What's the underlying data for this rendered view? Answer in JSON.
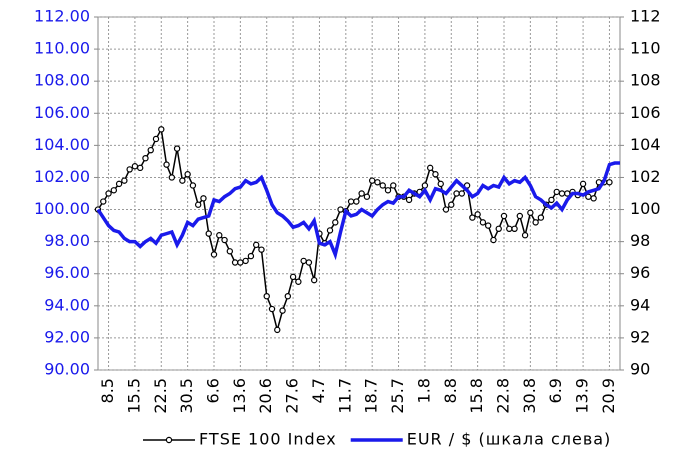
{
  "chart_data": {
    "type": "line",
    "categories": [
      null,
      null,
      "8.5",
      null,
      null,
      null,
      null,
      "15.5",
      null,
      null,
      null,
      null,
      "22.5",
      null,
      null,
      null,
      null,
      "30.5",
      null,
      null,
      null,
      null,
      "6.6",
      null,
      null,
      null,
      null,
      "13.6",
      null,
      null,
      null,
      null,
      "20.6",
      null,
      null,
      null,
      null,
      "27.6",
      null,
      null,
      null,
      null,
      "4.7",
      null,
      null,
      null,
      null,
      "11.7",
      null,
      null,
      null,
      null,
      "18.7",
      null,
      null,
      null,
      null,
      "25.7",
      null,
      null,
      null,
      null,
      "1.8",
      null,
      null,
      null,
      null,
      "8.8",
      null,
      null,
      null,
      null,
      "15.8",
      null,
      null,
      null,
      null,
      "22.8",
      null,
      null,
      null,
      null,
      "30.8",
      null,
      null,
      null,
      null,
      "6.9",
      null,
      null,
      null,
      null,
      "13.9",
      null,
      null,
      null,
      null,
      "20.9",
      null,
      null
    ],
    "series": [
      {
        "name": "FTSE 100 Index",
        "color": "#000000",
        "axis": "y2",
        "marker": "circle",
        "values": [
          100.0,
          100.5,
          101.0,
          101.2,
          101.6,
          101.8,
          102.5,
          102.7,
          102.6,
          103.2,
          103.7,
          104.4,
          105.0,
          102.8,
          102.0,
          103.8,
          101.8,
          102.2,
          101.5,
          100.3,
          100.7,
          98.5,
          97.2,
          98.4,
          98.1,
          97.4,
          96.7,
          96.7,
          96.8,
          97.1,
          97.8,
          97.5,
          94.6,
          93.8,
          92.5,
          93.7,
          94.6,
          95.8,
          95.5,
          96.8,
          96.7,
          95.6,
          98.5,
          97.9,
          98.7,
          99.2,
          100.0,
          99.9,
          100.5,
          100.5,
          101.0,
          100.8,
          101.8,
          101.7,
          101.5,
          101.2,
          101.5,
          100.8,
          100.8,
          100.6,
          101.0,
          101.1,
          101.5,
          102.6,
          102.2,
          101.6,
          100.0,
          100.3,
          101.0,
          101.0,
          101.5,
          99.5,
          99.7,
          99.2,
          99.0,
          98.1,
          98.8,
          99.6,
          98.8,
          98.8,
          99.6,
          98.4,
          99.8,
          99.2,
          99.5,
          100.3,
          100.6,
          101.1,
          101.0,
          101.0,
          101.1,
          100.9,
          101.6,
          100.8,
          100.7,
          101.7,
          101.7,
          101.7,
          null,
          null
        ]
      },
      {
        "name": "EUR / $ (шкала слева)",
        "color": "#1a1aeb",
        "values": [
          100.0,
          99.5,
          99.0,
          98.7,
          98.6,
          98.2,
          98.0,
          98.0,
          97.7,
          98.0,
          98.2,
          97.9,
          98.4,
          98.5,
          98.6,
          97.8,
          98.4,
          99.2,
          99.0,
          99.4,
          99.5,
          99.6,
          100.6,
          100.5,
          100.8,
          101.0,
          101.3,
          101.4,
          101.8,
          101.6,
          101.7,
          102.0,
          101.2,
          100.3,
          99.8,
          99.6,
          99.3,
          98.9,
          99.0,
          99.2,
          98.8,
          99.3,
          97.9,
          97.8,
          98.0,
          97.2,
          98.6,
          99.9,
          99.6,
          99.7,
          100.0,
          99.8,
          99.6,
          100.0,
          100.3,
          100.5,
          100.4,
          100.8,
          100.8,
          101.2,
          101.0,
          100.8,
          101.2,
          100.6,
          101.3,
          101.2,
          101.0,
          101.4,
          101.8,
          101.5,
          101.2,
          100.8,
          101.0,
          101.5,
          101.3,
          101.5,
          101.4,
          102.0,
          101.6,
          101.8,
          101.7,
          102.0,
          101.5,
          100.8,
          100.6,
          100.3,
          100.1,
          100.4,
          100.0,
          100.6,
          101.0,
          101.0,
          100.9,
          101.1,
          101.2,
          101.3,
          101.8,
          102.8,
          102.9,
          102.9
        ]
      }
    ],
    "ylim": [
      90,
      112
    ],
    "yticks": [
      {
        "value": 90,
        "label": "90.00"
      },
      {
        "value": 92,
        "label": "92.00"
      },
      {
        "value": 94,
        "label": "94.00"
      },
      {
        "value": 96,
        "label": "96.00"
      },
      {
        "value": 98,
        "label": "98.00"
      },
      {
        "value": 100,
        "label": "100.00"
      },
      {
        "value": 102,
        "label": "102.00"
      },
      {
        "value": 104,
        "label": "104.00"
      },
      {
        "value": 106,
        "label": "106.00"
      },
      {
        "value": 108,
        "label": "108.00"
      },
      {
        "value": 110,
        "label": "110.00"
      },
      {
        "value": 112,
        "label": "112.00"
      }
    ],
    "y2lim": [
      90,
      112
    ],
    "y2ticks": [
      90,
      92,
      94,
      96,
      98,
      100,
      102,
      104,
      106,
      108,
      110,
      112
    ],
    "ytick_color": "#1a1aeb",
    "grid": true,
    "legend": "bottom"
  }
}
